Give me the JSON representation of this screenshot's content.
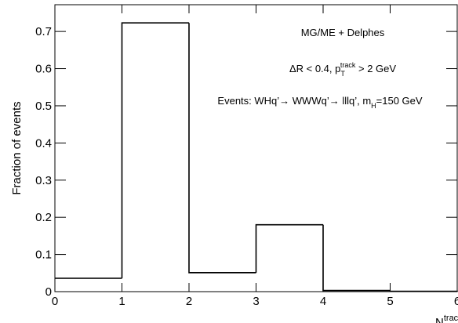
{
  "chart_data": {
    "type": "histogram",
    "y_label": "Fraction of events",
    "x_label": {
      "text": "N",
      "sup": "tracks"
    },
    "annotations": [
      [
        {
          "text": "MG/ME + Delphes"
        }
      ],
      [
        {
          "text": "ΔR < 0.4, p"
        },
        {
          "text": "T",
          "shift": "sub"
        },
        {
          "text": "track",
          "shift": "sup"
        },
        {
          "text": " > 2 GeV"
        }
      ],
      [
        {
          "text": "Events: WHq’→ WWWq’→ lllq’, m"
        },
        {
          "text": "H",
          "shift": "sub"
        },
        {
          "text": "=150 GeV"
        }
      ]
    ],
    "bins": [
      0,
      1,
      2,
      3,
      4,
      5,
      6
    ],
    "values": [
      0.036,
      0.723,
      0.051,
      0.18,
      0.003,
      0.001
    ],
    "color": "#000000",
    "xlim": [
      0,
      6
    ],
    "xticks": [
      0,
      1,
      2,
      3,
      4,
      5,
      6
    ],
    "ylim": [
      0,
      0.772
    ],
    "yticks": [
      0,
      0.1,
      0.2,
      0.3,
      0.4,
      0.5,
      0.6,
      0.7
    ]
  }
}
